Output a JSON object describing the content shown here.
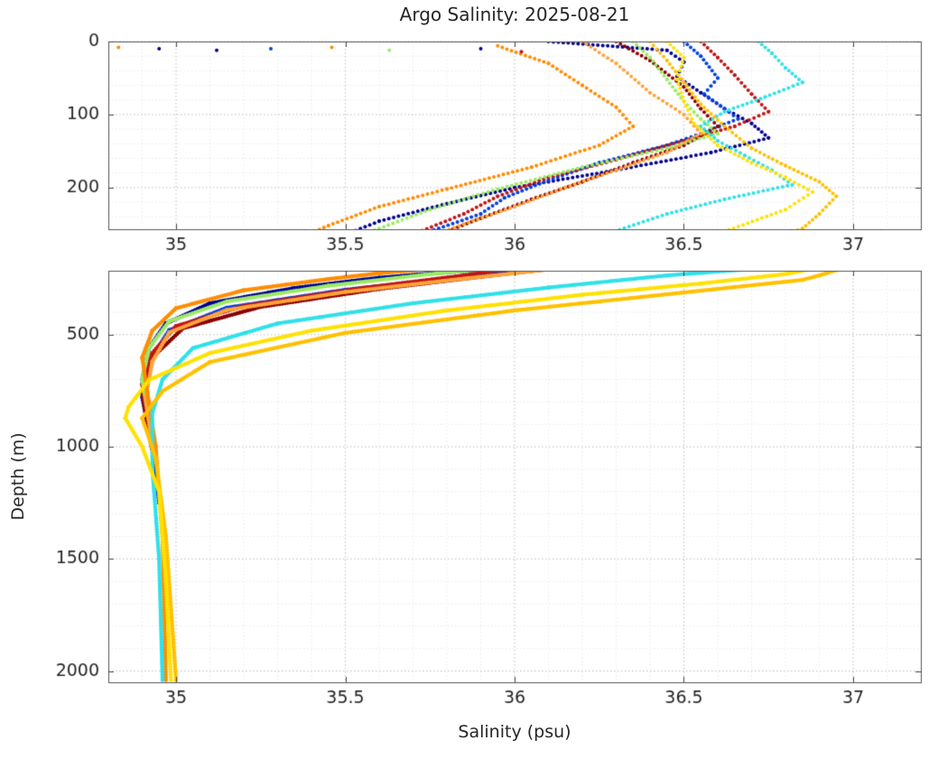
{
  "chart_data": {
    "type": "scatter",
    "title": "Argo Salinity: 2025-08-21",
    "xlabel": "Salinity (psu)",
    "ylabel": "Depth (m)",
    "x_range": [
      34.8,
      37.2
    ],
    "x_ticks": [
      35,
      35.5,
      36,
      36.5,
      37
    ],
    "x_tick_labels": [
      "35",
      "35.5",
      "36",
      "36.5",
      "37"
    ],
    "x_minor_step": 0.1,
    "grid": "dotted",
    "legend": "none",
    "panels": [
      {
        "name": "upper-0-260m",
        "depth_range": [
          0,
          257
        ],
        "y_ticks": [
          0,
          100,
          200
        ],
        "y_tick_labels": [
          "0",
          "100",
          "200"
        ],
        "y_minor_step": 20
      },
      {
        "name": "lower-215-2050m",
        "depth_range": [
          215,
          2050
        ],
        "y_ticks": [
          500,
          1000,
          1500,
          2000
        ],
        "y_tick_labels": [
          "500",
          "1000",
          "1500",
          "2000"
        ],
        "y_minor_step": 100
      }
    ],
    "series": [
      {
        "name": "profile-navy",
        "color": "#000090",
        "points": [
          [
            36.1,
            0
          ],
          [
            36.45,
            12
          ],
          [
            36.5,
            28
          ],
          [
            36.48,
            48
          ],
          [
            36.55,
            70
          ],
          [
            36.62,
            92
          ],
          [
            36.7,
            112
          ],
          [
            36.75,
            132
          ],
          [
            36.58,
            152
          ],
          [
            36.3,
            176
          ],
          [
            36.0,
            200
          ],
          [
            35.8,
            222
          ],
          [
            35.6,
            246
          ],
          [
            35.35,
            292
          ],
          [
            35.1,
            360
          ],
          [
            34.97,
            450
          ],
          [
            34.92,
            560
          ],
          [
            34.9,
            700
          ],
          [
            34.92,
            900
          ],
          [
            34.94,
            1050
          ]
        ]
      },
      {
        "name": "profile-blue",
        "color": "#0040E0",
        "points": [
          [
            36.5,
            0
          ],
          [
            36.55,
            20
          ],
          [
            36.6,
            50
          ],
          [
            36.56,
            72
          ],
          [
            36.62,
            92
          ],
          [
            36.66,
            106
          ],
          [
            36.55,
            126
          ],
          [
            36.45,
            142
          ],
          [
            36.25,
            166
          ],
          [
            36.1,
            190
          ],
          [
            35.97,
            214
          ],
          [
            35.9,
            236
          ],
          [
            35.5,
            300
          ],
          [
            35.15,
            380
          ],
          [
            34.98,
            480
          ],
          [
            34.92,
            620
          ],
          [
            34.9,
            780
          ],
          [
            34.93,
            1000
          ],
          [
            34.95,
            1250
          ]
        ]
      },
      {
        "name": "profile-maroon",
        "color": "#8A0000",
        "points": [
          [
            36.3,
            0
          ],
          [
            36.4,
            26
          ],
          [
            36.5,
            62
          ],
          [
            36.55,
            92
          ],
          [
            36.6,
            116
          ],
          [
            36.5,
            142
          ],
          [
            36.35,
            166
          ],
          [
            36.2,
            192
          ],
          [
            36.05,
            216
          ],
          [
            35.9,
            242
          ],
          [
            35.6,
            296
          ],
          [
            35.25,
            376
          ],
          [
            35.02,
            472
          ],
          [
            34.93,
            602
          ],
          [
            34.9,
            762
          ],
          [
            34.92,
            950
          ],
          [
            34.94,
            1080
          ]
        ]
      },
      {
        "name": "profile-red",
        "color": "#C01414",
        "points": [
          [
            36.55,
            0
          ],
          [
            36.6,
            22
          ],
          [
            36.65,
            46
          ],
          [
            36.7,
            72
          ],
          [
            36.75,
            96
          ],
          [
            36.65,
            116
          ],
          [
            36.5,
            136
          ],
          [
            36.3,
            162
          ],
          [
            36.1,
            186
          ],
          [
            35.95,
            212
          ],
          [
            35.85,
            236
          ],
          [
            35.55,
            292
          ],
          [
            35.2,
            372
          ],
          [
            35.0,
            462
          ],
          [
            34.93,
            582
          ],
          [
            34.9,
            722
          ],
          [
            34.92,
            900
          ],
          [
            34.94,
            1060
          ]
        ]
      },
      {
        "name": "profile-lightgreen",
        "color": "#9BEB64",
        "points": [
          [
            36.35,
            0
          ],
          [
            36.4,
            22
          ],
          [
            36.45,
            52
          ],
          [
            36.5,
            82
          ],
          [
            36.55,
            106
          ],
          [
            36.6,
            126
          ],
          [
            36.45,
            146
          ],
          [
            36.2,
            172
          ],
          [
            35.95,
            202
          ],
          [
            35.75,
            230
          ],
          [
            35.45,
            282
          ],
          [
            35.15,
            352
          ],
          [
            34.98,
            440
          ],
          [
            34.92,
            560
          ],
          [
            34.9,
            700
          ],
          [
            34.92,
            880
          ],
          [
            34.94,
            1020
          ]
        ]
      },
      {
        "name": "profile-lightorange",
        "color": "#FFA43B",
        "points": [
          [
            36.2,
            0
          ],
          [
            36.3,
            30
          ],
          [
            36.4,
            70
          ],
          [
            36.5,
            100
          ],
          [
            36.55,
            126
          ],
          [
            36.45,
            152
          ],
          [
            36.3,
            176
          ],
          [
            36.15,
            200
          ],
          [
            36.0,
            226
          ],
          [
            35.85,
            250
          ],
          [
            35.5,
            310
          ],
          [
            35.15,
            390
          ],
          [
            34.98,
            490
          ],
          [
            34.93,
            620
          ],
          [
            34.91,
            780
          ],
          [
            34.93,
            1000
          ]
        ]
      },
      {
        "name": "profile-orange",
        "color": "#FF8C00",
        "points": [
          [
            35.95,
            6
          ],
          [
            36.1,
            30
          ],
          [
            36.2,
            60
          ],
          [
            36.3,
            90
          ],
          [
            36.35,
            116
          ],
          [
            36.25,
            142
          ],
          [
            36.05,
            172
          ],
          [
            35.8,
            202
          ],
          [
            35.6,
            226
          ],
          [
            35.45,
            252
          ],
          [
            35.2,
            302
          ],
          [
            35.0,
            382
          ],
          [
            34.93,
            482
          ],
          [
            34.9,
            602
          ],
          [
            34.92,
            802
          ],
          [
            34.94,
            1000
          ],
          [
            34.96,
            1400
          ],
          [
            34.97,
            2040
          ]
        ]
      },
      {
        "name": "profile-cyan",
        "color": "#30E0E8",
        "points": [
          [
            36.72,
            0
          ],
          [
            36.76,
            16
          ],
          [
            36.8,
            36
          ],
          [
            36.85,
            56
          ],
          [
            36.74,
            76
          ],
          [
            36.62,
            96
          ],
          [
            36.55,
            116
          ],
          [
            36.6,
            136
          ],
          [
            36.68,
            156
          ],
          [
            36.76,
            176
          ],
          [
            36.82,
            196
          ],
          [
            36.62,
            216
          ],
          [
            36.45,
            236
          ],
          [
            36.1,
            290
          ],
          [
            35.7,
            360
          ],
          [
            35.3,
            450
          ],
          [
            35.05,
            560
          ],
          [
            34.96,
            700
          ],
          [
            34.93,
            850
          ],
          [
            34.93,
            1100
          ],
          [
            34.95,
            1500
          ],
          [
            34.96,
            2040
          ]
        ]
      },
      {
        "name": "profile-gold",
        "color": "#FFC000",
        "points": [
          [
            36.4,
            0
          ],
          [
            36.45,
            26
          ],
          [
            36.5,
            56
          ],
          [
            36.55,
            86
          ],
          [
            36.62,
            116
          ],
          [
            36.7,
            146
          ],
          [
            36.8,
            170
          ],
          [
            36.9,
            192
          ],
          [
            36.95,
            212
          ],
          [
            36.9,
            236
          ],
          [
            36.85,
            256
          ],
          [
            36.5,
            312
          ],
          [
            36.0,
            392
          ],
          [
            35.5,
            492
          ],
          [
            35.1,
            622
          ],
          [
            34.96,
            752
          ],
          [
            34.9,
            872
          ],
          [
            34.94,
            1050
          ],
          [
            34.97,
            1400
          ],
          [
            35.0,
            2040
          ]
        ]
      },
      {
        "name": "profile-yellow",
        "color": "#FFE100",
        "points": [
          [
            36.45,
            0
          ],
          [
            36.5,
            22
          ],
          [
            36.48,
            52
          ],
          [
            36.5,
            82
          ],
          [
            36.53,
            112
          ],
          [
            36.6,
            142
          ],
          [
            36.7,
            166
          ],
          [
            36.8,
            186
          ],
          [
            36.88,
            206
          ],
          [
            36.8,
            230
          ],
          [
            36.55,
            272
          ],
          [
            36.2,
            322
          ],
          [
            35.8,
            392
          ],
          [
            35.4,
            482
          ],
          [
            35.1,
            582
          ],
          [
            34.92,
            702
          ],
          [
            34.86,
            822
          ],
          [
            34.85,
            872
          ],
          [
            34.9,
            1000
          ],
          [
            34.95,
            1200
          ],
          [
            34.97,
            1600
          ],
          [
            34.985,
            2040
          ]
        ]
      }
    ],
    "surface_outliers": [
      [
        34.83,
        8,
        "#FF8C00"
      ],
      [
        34.95,
        10,
        "#000090"
      ],
      [
        35.12,
        12,
        "#000090"
      ],
      [
        35.28,
        10,
        "#0040E0"
      ],
      [
        35.46,
        8,
        "#FF8C00"
      ],
      [
        35.63,
        12,
        "#9BEB64"
      ],
      [
        35.9,
        10,
        "#000090"
      ],
      [
        36.02,
        14,
        "#C01414"
      ]
    ]
  }
}
